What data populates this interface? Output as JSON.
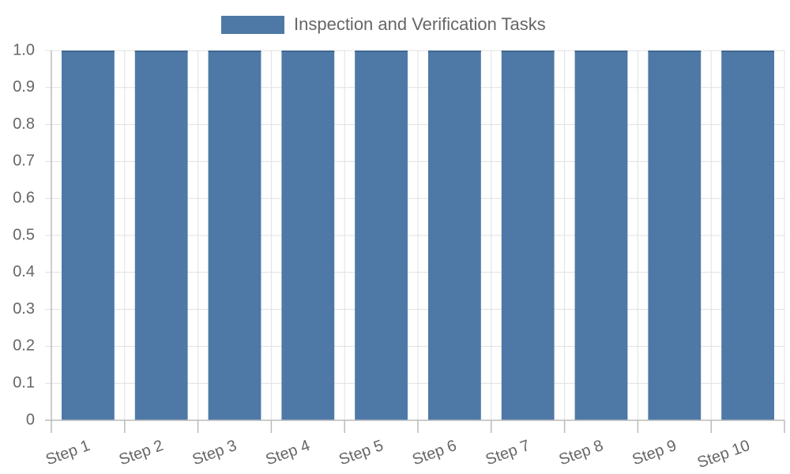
{
  "chart_data": {
    "type": "bar",
    "categories": [
      "Step 1",
      "Step 2",
      "Step 3",
      "Step 4",
      "Step 5",
      "Step 6",
      "Step 7",
      "Step 8",
      "Step 9",
      "Step 10"
    ],
    "series": [
      {
        "name": "Inspection and Verification Tasks",
        "color": "#4e79a7",
        "values": [
          1,
          1,
          1,
          1,
          1,
          1,
          1,
          1,
          1,
          1
        ]
      }
    ],
    "ylim": [
      0,
      1
    ],
    "yticks": [
      0,
      0.1,
      0.2,
      0.3,
      0.4,
      0.5,
      0.6,
      0.7,
      0.8,
      0.9,
      {
        "value": 1,
        "label": "1.0"
      }
    ],
    "grid": true,
    "legend": "top"
  }
}
